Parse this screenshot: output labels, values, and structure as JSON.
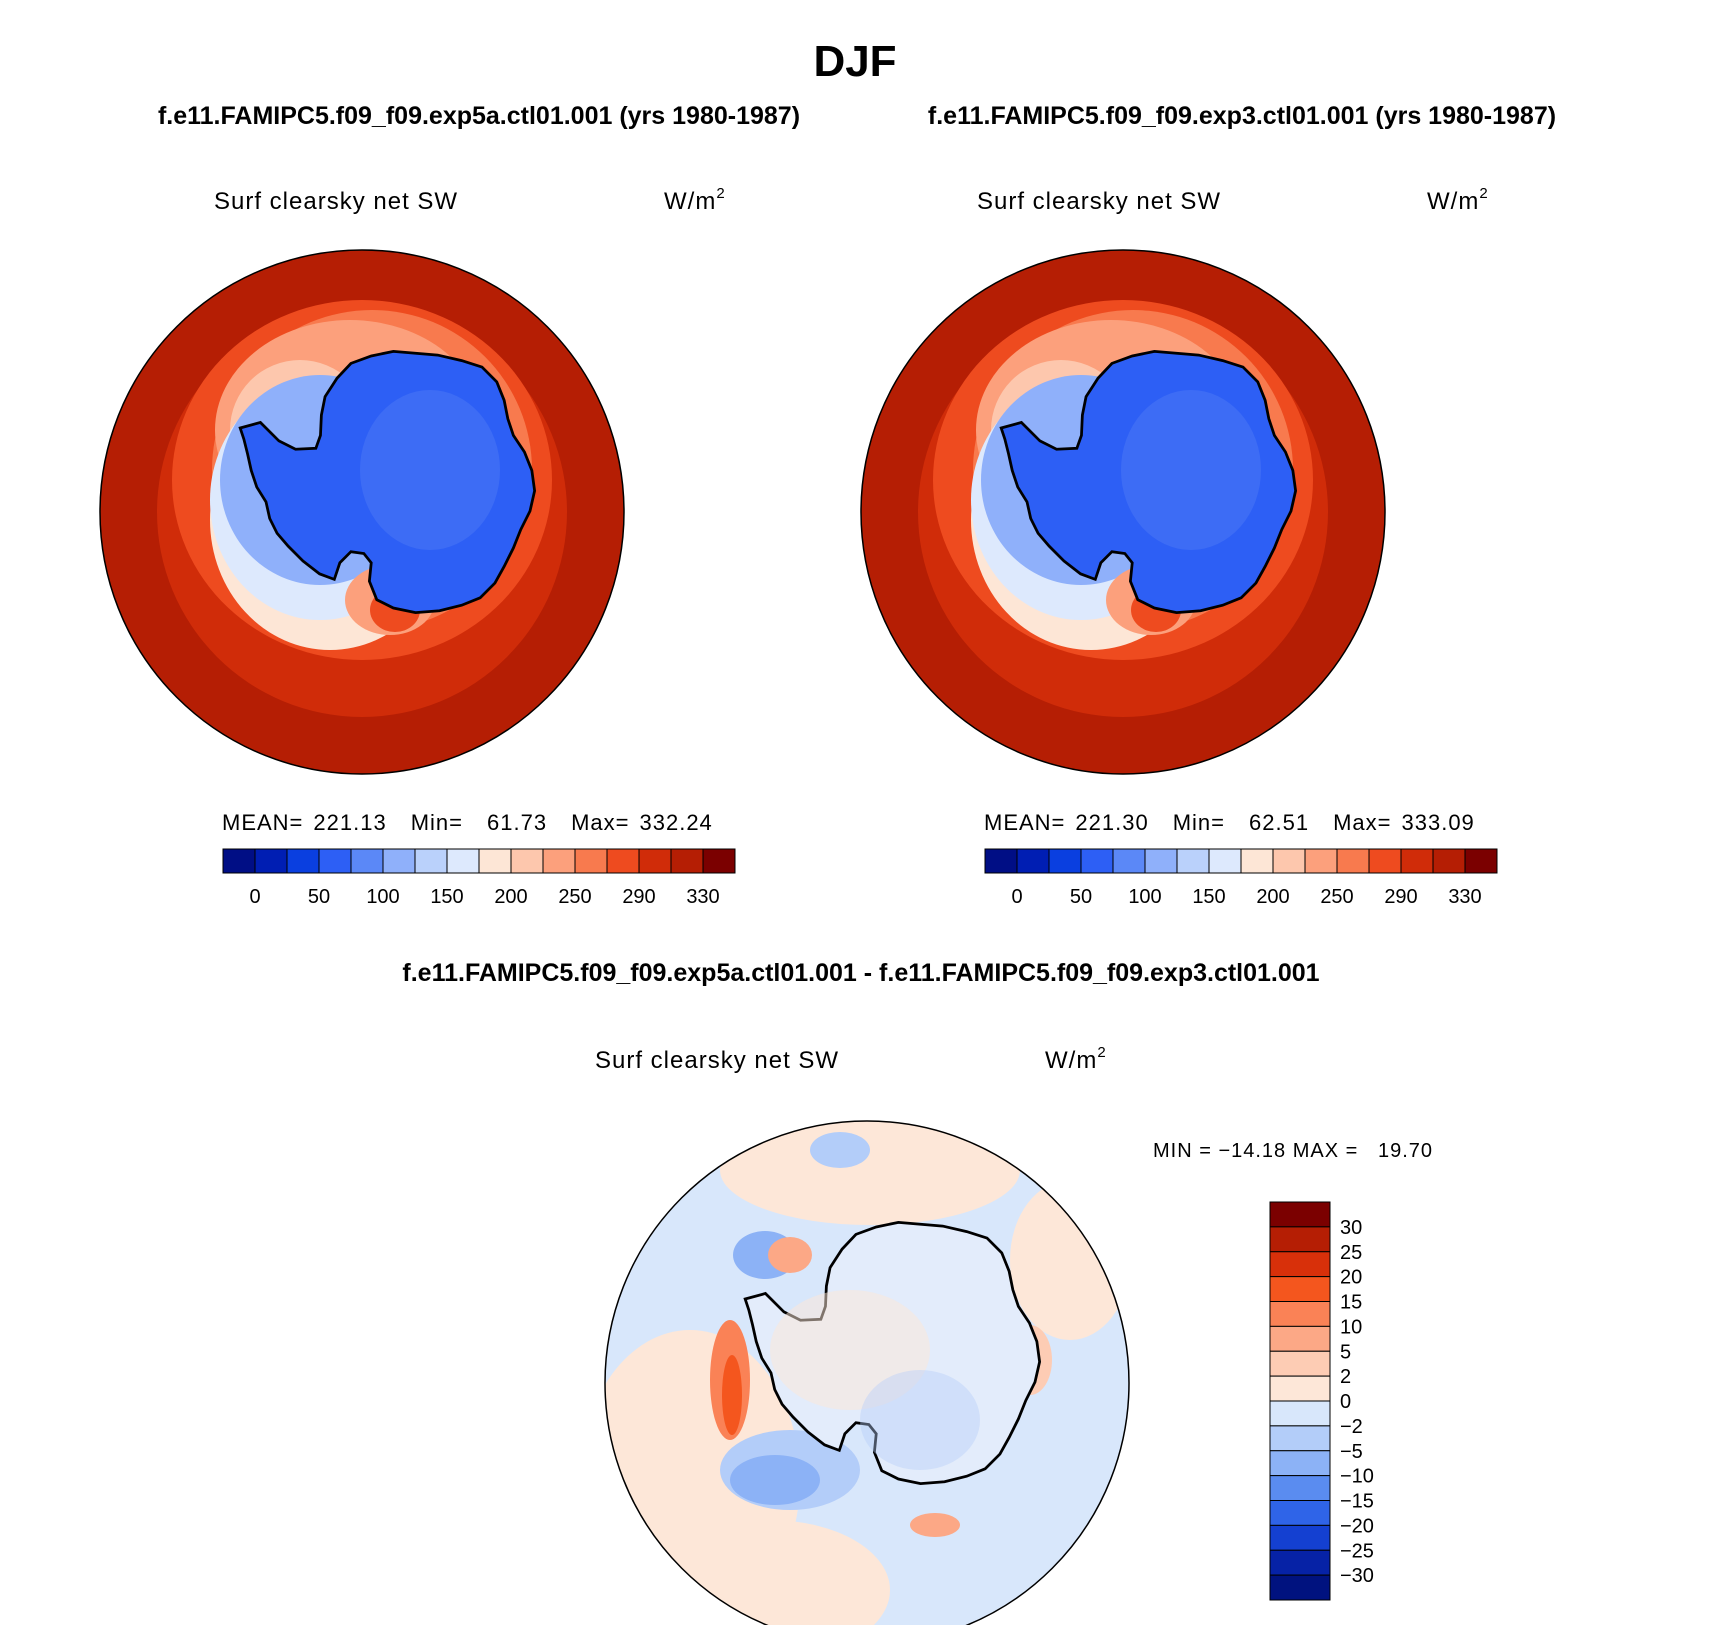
{
  "title": "DJF",
  "panels": [
    {
      "case": "f.e11.FAMIPC5.f09_f09.exp5a.ctl01.001 (yrs 1980-1987)",
      "variable": "Surf clearsky net SW",
      "units": "W/m",
      "units_sup": "2",
      "stats": {
        "mean_label": "MEAN=",
        "mean": "221.13",
        "min_label": "Min=",
        "min": "61.73",
        "max_label": "Max=",
        "max": "332.24"
      },
      "colorbar_labels": [
        "0",
        "50",
        "100",
        "150",
        "200",
        "250",
        "290",
        "330"
      ]
    },
    {
      "case": "f.e11.FAMIPC5.f09_f09.exp3.ctl01.001 (yrs 1980-1987)",
      "variable": "Surf clearsky net SW",
      "units": "W/m",
      "units_sup": "2",
      "stats": {
        "mean_label": "MEAN=",
        "mean": "221.30",
        "min_label": "Min=",
        "min": "62.51",
        "max_label": "Max=",
        "max": "333.09"
      },
      "colorbar_labels": [
        "0",
        "50",
        "100",
        "150",
        "200",
        "250",
        "290",
        "330"
      ]
    }
  ],
  "diff": {
    "title": "f.e11.FAMIPC5.f09_f09.exp5a.ctl01.001 - f.e11.FAMIPC5.f09_f09.exp3.ctl01.001",
    "variable": "Surf clearsky net SW",
    "units": "W/m",
    "units_sup": "2",
    "minmax": "MIN = −14.18 MAX =   19.70",
    "colorbar_labels": [
      "30",
      "25",
      "20",
      "15",
      "10",
      "5",
      "2",
      "0",
      "−2",
      "−5",
      "−10",
      "−15",
      "−20",
      "−25",
      "−30"
    ]
  },
  "colors": {
    "main_scale": [
      "#000e85",
      "#001eb3",
      "#0a3fe0",
      "#2d5ff5",
      "#5b88f7",
      "#8fb0fa",
      "#bad1fb",
      "#dde9fd",
      "#fde6d6",
      "#fdc7ad",
      "#fca07c",
      "#f87a4e",
      "#ee4b1f",
      "#d02c09",
      "#b51e04",
      "#7b0000"
    ],
    "diff_scale": [
      "#7b0000",
      "#b51e04",
      "#d8300a",
      "#f4561e",
      "#fa8256",
      "#fca886",
      "#fdccb4",
      "#fde7d8",
      "#d8e7fb",
      "#b3cdf9",
      "#8cb2f6",
      "#5a8cf0",
      "#2f64e8",
      "#1440d1",
      "#0622a6",
      "#00127f"
    ],
    "ocean_outer": "#b51e04",
    "ocean_mid": "#d02c09",
    "land": "#2d5ff5",
    "land_light": "#5b88f7",
    "diff_ocean": "#d8e7fb",
    "diff_peach": "#fde7d8"
  }
}
